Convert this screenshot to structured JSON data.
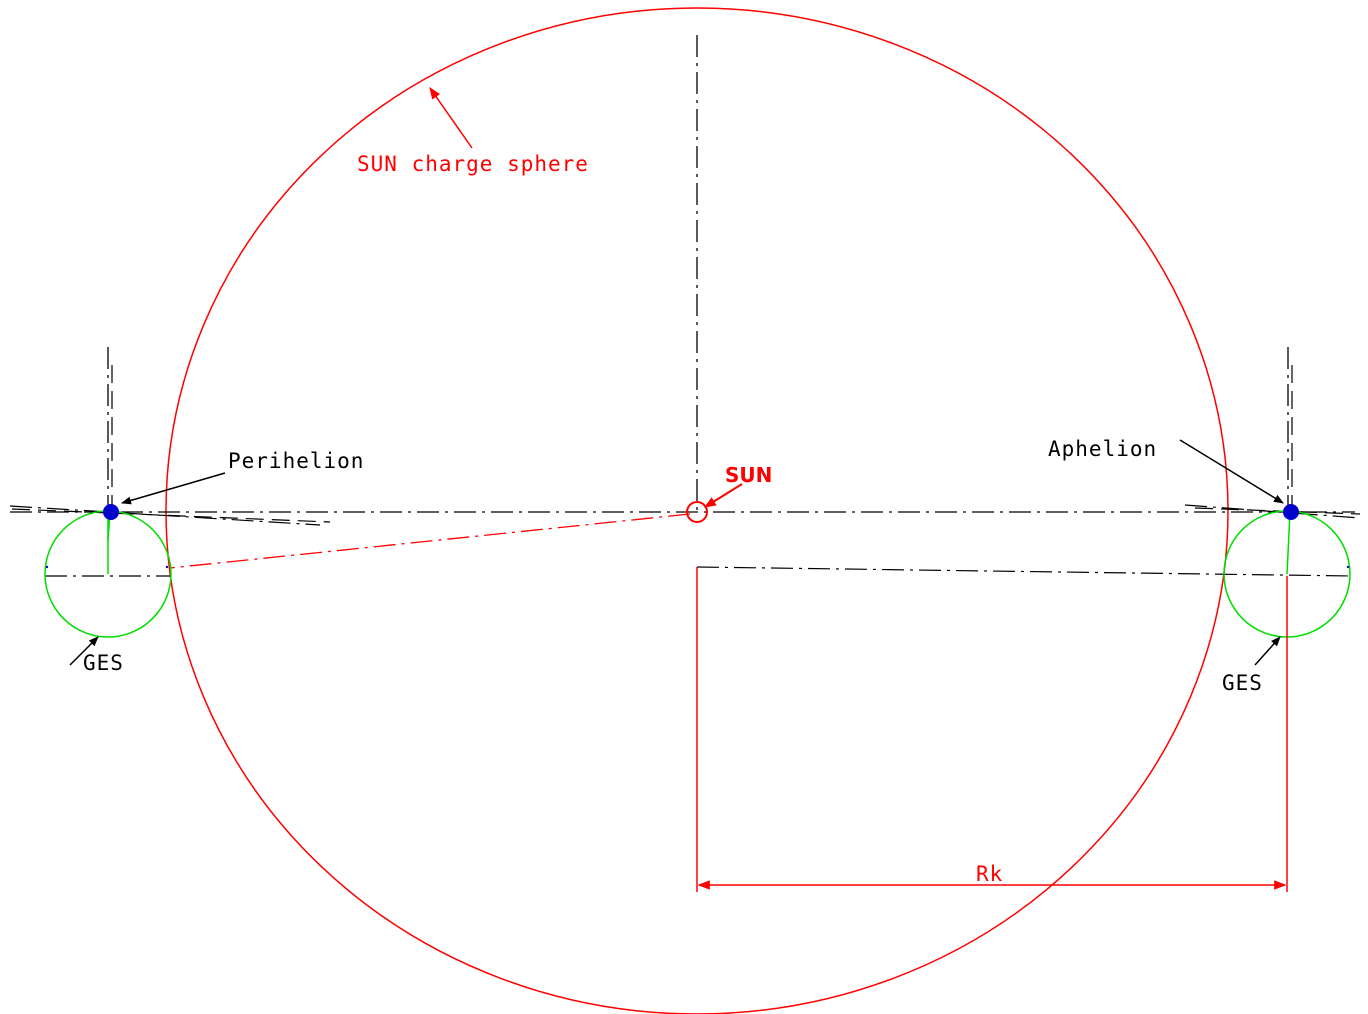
{
  "labels": {
    "sun_charge_sphere": "SUN charge sphere",
    "sun": "SUN",
    "perihelion": "Perihelion",
    "aphelion": "Aphelion",
    "ges_left": "GES",
    "ges_right": "GES",
    "rk": "Rk"
  },
  "colors": {
    "sphere": "#ff0000",
    "ges_circle": "#00dd00",
    "planet": "#0000cc",
    "construction_lines": "#000000",
    "black_labels": "#000000",
    "red_labels": "#ff0000"
  }
}
